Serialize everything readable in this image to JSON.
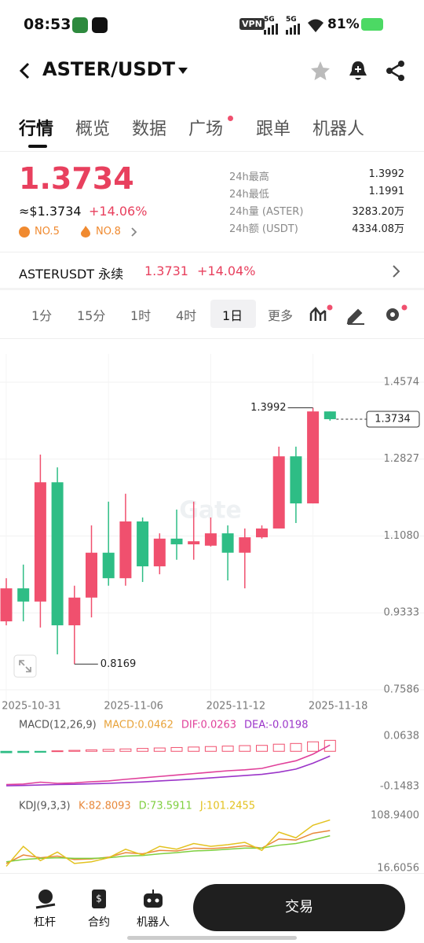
{
  "status_bar": {
    "time": "08:53",
    "vpn": "VPN",
    "net1": "5G",
    "net2": "5G",
    "battery": "81%"
  },
  "header": {
    "pair": "ASTER/USDT"
  },
  "tabs": [
    "行情",
    "概览",
    "数据",
    "广场",
    "跟单",
    "机器人"
  ],
  "ticker": {
    "price": "1.3734",
    "usd_price": "≈$1.3734",
    "change": "+14.06%",
    "rank1": "NO.5",
    "rank2": "NO.8",
    "stats": [
      {
        "label": "24h最高",
        "value": "1.3992"
      },
      {
        "label": "24h最低",
        "value": "1.1991"
      },
      {
        "label": "24h量 (ASTER)",
        "value": "3283.20万"
      },
      {
        "label": "24h额 (USDT)",
        "value": "4334.08万"
      }
    ]
  },
  "perp": {
    "name": "ASTERUSDT 永续",
    "price": "1.3731",
    "change": "+14.04%"
  },
  "timeframes": [
    "1分",
    "15分",
    "1时",
    "4时",
    "1日",
    "更多"
  ],
  "chart_data": [
    {
      "type": "candlestick",
      "watermark": "Gate",
      "categories": [
        "2025-10-31",
        null,
        null,
        null,
        null,
        null,
        "2025-11-06",
        null,
        null,
        null,
        null,
        null,
        "2025-11-12",
        null,
        null,
        null,
        null,
        null,
        "2025-11-18",
        null
      ],
      "open": [
        0.914,
        0.989,
        0.959,
        1.23,
        0.905,
        0.968,
        1.07,
        1.012,
        1.141,
        1.039,
        1.102,
        1.089,
        1.086,
        1.114,
        1.07,
        1.105,
        1.125,
        1.289,
        1.182,
        1.391
      ],
      "high": [
        1.012,
        1.043,
        1.293,
        1.264,
        0.995,
        1.132,
        1.186,
        1.204,
        1.15,
        1.114,
        1.168,
        1.186,
        1.15,
        1.132,
        1.125,
        1.132,
        1.311,
        1.311,
        1.3992,
        1.391
      ],
      "low": [
        0.905,
        0.914,
        0.9,
        0.839,
        0.8169,
        0.923,
        0.995,
        0.995,
        1.0035,
        1.021,
        1.054,
        1.054,
        1.084,
        1.007,
        0.989,
        1.102,
        1.125,
        1.1375,
        1.182,
        1.37
      ],
      "close": [
        0.989,
        0.959,
        1.23,
        0.905,
        0.968,
        1.07,
        1.012,
        1.141,
        1.039,
        1.102,
        1.089,
        1.096,
        1.114,
        1.07,
        1.105,
        1.125,
        1.289,
        1.182,
        1.391,
        1.3734
      ],
      "up_color": "#f0506e",
      "down_color": "#2ebd85",
      "ylim": [
        0.7264,
        1.5217
      ],
      "yticks": [
        1.4574,
        1.2827,
        {
          "value": 1.108,
          "label": "1.1080"
        },
        0.9333,
        0.7586
      ],
      "grid": true
    },
    {
      "type": "macd",
      "title": "MACD(12,26,9)",
      "series": [
        {
          "name": "MACD:0.0462",
          "color": "#e8a33a",
          "kind": "bar",
          "values": [
            -0.006,
            -0.005,
            -0.004,
            0.002,
            0.004,
            0.006,
            0.008,
            0.01,
            0.012,
            0.014,
            0.016,
            0.018,
            0.02,
            0.022,
            0.024,
            0.025,
            0.03,
            0.033,
            0.04,
            0.0462
          ]
        },
        {
          "name": "DIF:0.0263",
          "color": "#e0409a",
          "kind": "line",
          "values": [
            -0.14,
            -0.138,
            -0.13,
            -0.135,
            -0.133,
            -0.128,
            -0.125,
            -0.118,
            -0.112,
            -0.106,
            -0.1,
            -0.094,
            -0.088,
            -0.082,
            -0.078,
            -0.072,
            -0.055,
            -0.04,
            -0.012,
            0.0263
          ]
        },
        {
          "name": "DEA:-0.0198",
          "color": "#9b35c9",
          "kind": "line",
          "values": [
            -0.145,
            -0.144,
            -0.142,
            -0.14,
            -0.139,
            -0.137,
            -0.135,
            -0.132,
            -0.129,
            -0.125,
            -0.121,
            -0.117,
            -0.112,
            -0.107,
            -0.102,
            -0.097,
            -0.088,
            -0.075,
            -0.05,
            -0.0198
          ]
        }
      ],
      "ylim": [
        -0.1814,
        0.1003
      ],
      "yticks": [
        0.0638,
        -0.1483
      ]
    },
    {
      "type": "kdj",
      "title": "KDJ(9,3,3)",
      "series": [
        {
          "name": "K:82.8093",
          "color": "#e8883a",
          "values": [
            25,
            40,
            35,
            38,
            32,
            33,
            36,
            44,
            42,
            48,
            47,
            52,
            51,
            53,
            56,
            52,
            68,
            66,
            78,
            82.8093
          ]
        },
        {
          "name": "D:73.5911",
          "color": "#7fcf3f",
          "values": [
            28,
            32,
            34,
            35,
            34,
            34,
            35,
            38,
            39,
            42,
            44,
            47,
            48,
            50,
            52,
            52,
            57,
            60,
            66,
            73.5911
          ]
        },
        {
          "name": "J:101.2455",
          "color": "#e3c21f",
          "values": [
            20,
            55,
            30,
            45,
            25,
            28,
            35,
            50,
            40,
            55,
            50,
            60,
            55,
            58,
            62,
            48,
            80,
            70,
            92,
            101.2455
          ]
        }
      ],
      "ylim": [
        8.34,
        139.26
      ],
      "yticks": [
        {
          "value": 108.94,
          "label": "108.9400"
        },
        16.6056
      ]
    }
  ],
  "bottom_nav": {
    "items": [
      "杠杆",
      "合约",
      "机器人"
    ],
    "trade": "交易"
  }
}
